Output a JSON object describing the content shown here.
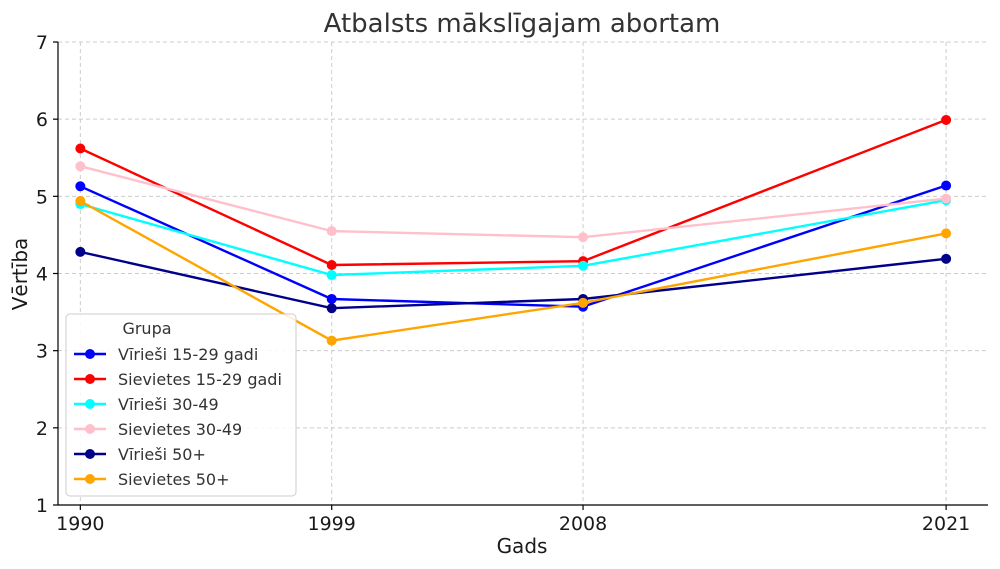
{
  "chart_data": {
    "type": "line",
    "title": "Atbalsts mākslīgajam abortam",
    "xlabel": "Gads",
    "ylabel": "Vērtība",
    "x": [
      1990,
      1999,
      2008,
      2021
    ],
    "x_tick_labels": [
      "1990",
      "1999",
      "2008",
      "2021"
    ],
    "ylim": [
      1,
      7
    ],
    "y_ticks": [
      1,
      2,
      3,
      4,
      5,
      6,
      7
    ],
    "grid": true,
    "legend": {
      "title": "Grupa",
      "placement": "lower-left"
    },
    "series": [
      {
        "name": "Vīrieši 15-29 gadi",
        "color": "#0000ff",
        "values": [
          5.13,
          3.67,
          3.57,
          5.14
        ]
      },
      {
        "name": "Sievietes 15-29 gadi",
        "color": "#ff0000",
        "values": [
          5.62,
          4.11,
          4.16,
          5.99
        ]
      },
      {
        "name": "Vīrieši 30-49",
        "color": "#00ffff",
        "values": [
          4.9,
          3.98,
          4.1,
          4.95
        ]
      },
      {
        "name": "Sievietes 30-49",
        "color": "#ffc0cb",
        "values": [
          5.39,
          4.55,
          4.47,
          4.97
        ]
      },
      {
        "name": "Vīrieši 50+",
        "color": "#00008b",
        "values": [
          4.28,
          3.55,
          3.67,
          4.19
        ]
      },
      {
        "name": "Sievietes 50+",
        "color": "#ffa500",
        "values": [
          4.94,
          3.13,
          3.62,
          4.52
        ]
      }
    ]
  }
}
